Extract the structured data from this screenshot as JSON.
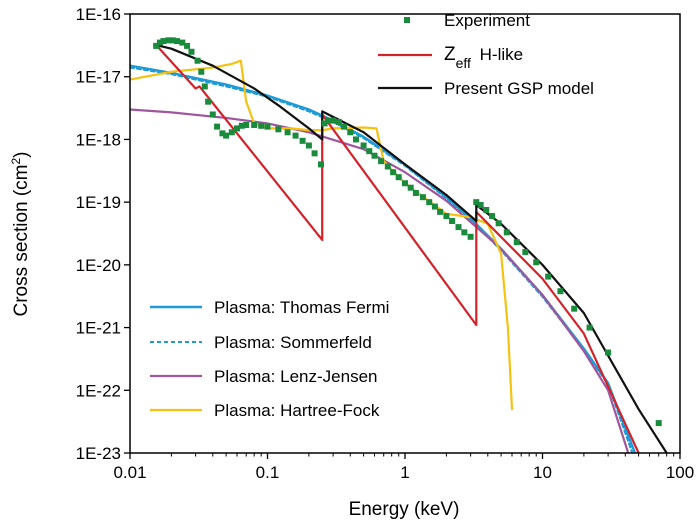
{
  "chart_data": {
    "type": "line",
    "xlabel": "Energy (keV)",
    "ylabel_main": "Cross section (cm",
    "ylabel_sup": "2",
    "ylabel_close": ")",
    "x_scale": "log",
    "y_scale": "log",
    "xlim": [
      0.01,
      100
    ],
    "ylim": [
      1e-23,
      1e-16
    ],
    "x_ticks": [
      {
        "value": 0.01,
        "label": "0.01"
      },
      {
        "value": 0.1,
        "label": "0.1"
      },
      {
        "value": 1,
        "label": "1"
      },
      {
        "value": 10,
        "label": "10"
      },
      {
        "value": 100,
        "label": "100"
      }
    ],
    "y_ticks": [
      {
        "value": 1e-23,
        "label": "1E-23"
      },
      {
        "value": 1e-22,
        "label": "1E-22"
      },
      {
        "value": 1e-21,
        "label": "1E-21"
      },
      {
        "value": 1e-20,
        "label": "1E-20"
      },
      {
        "value": 1e-19,
        "label": "1E-19"
      },
      {
        "value": 1e-18,
        "label": "1E-18"
      },
      {
        "value": 1e-17,
        "label": "1E-17"
      },
      {
        "value": 1e-16,
        "label": "1E-16"
      }
    ],
    "legend_top": {
      "experiment": "Experiment",
      "zeff_main": "Z",
      "zeff_sub": "eff",
      "zeff_rest": " H-like",
      "gsp": "Present GSP model"
    },
    "legend_bottom": [
      {
        "label": "Plasma: Thomas Fermi",
        "color": "#1f9ad6",
        "dash": "none"
      },
      {
        "label": "Plasma: Sommerfeld",
        "color": "#1f9ad6",
        "dash": "4,3"
      },
      {
        "label": "Plasma: Lenz-Jensen",
        "color": "#a0569c",
        "dash": "none"
      },
      {
        "label": "Plasma: Hartree-Fock",
        "color": "#f5c211",
        "dash": "none"
      }
    ],
    "series": [
      {
        "key": "thomas_fermi",
        "color": "#1f9ad6",
        "dash": "none",
        "width": 2.4,
        "points": [
          [
            0.01,
            1.5e-17
          ],
          [
            0.02,
            1.15e-17
          ],
          [
            0.05,
            7.5e-18
          ],
          [
            0.1,
            5e-18
          ],
          [
            0.2,
            3e-18
          ],
          [
            0.3,
            2e-18
          ],
          [
            0.5,
            1.1e-18
          ],
          [
            1,
            4e-19
          ],
          [
            2,
            1.2e-19
          ],
          [
            3,
            5.5e-20
          ],
          [
            5,
            1.8e-20
          ],
          [
            10,
            3.3e-21
          ],
          [
            20,
            4.6e-22
          ],
          [
            30,
            1.3e-22
          ],
          [
            47,
            1e-23
          ]
        ]
      },
      {
        "key": "sommerfeld",
        "color": "#1f9ad6",
        "dash": "4,3",
        "width": 2,
        "points": [
          [
            0.01,
            1.4e-17
          ],
          [
            0.02,
            1.1e-17
          ],
          [
            0.05,
            7e-18
          ],
          [
            0.1,
            4.8e-18
          ],
          [
            0.2,
            2.8e-18
          ],
          [
            0.3,
            1.9e-18
          ],
          [
            0.5,
            1.05e-18
          ],
          [
            1,
            3.8e-19
          ],
          [
            2,
            1.15e-19
          ],
          [
            3,
            5.3e-20
          ],
          [
            5,
            1.7e-20
          ],
          [
            10,
            3.1e-21
          ],
          [
            20,
            4.4e-22
          ],
          [
            30,
            1.25e-22
          ],
          [
            45,
            1e-23
          ]
        ]
      },
      {
        "key": "lenz_jensen",
        "color": "#a0569c",
        "dash": "none",
        "width": 2.2,
        "points": [
          [
            0.01,
            3e-18
          ],
          [
            0.02,
            2.7e-18
          ],
          [
            0.05,
            2.2e-18
          ],
          [
            0.1,
            1.8e-18
          ],
          [
            0.2,
            1.3e-18
          ],
          [
            0.5,
            7e-19
          ],
          [
            1,
            3e-19
          ],
          [
            2,
            1.05e-19
          ],
          [
            5,
            1.8e-20
          ],
          [
            10,
            3.3e-21
          ],
          [
            20,
            4.2e-22
          ],
          [
            30,
            1e-22
          ],
          [
            42,
            1e-23
          ]
        ]
      },
      {
        "key": "hartree_fock",
        "color": "#f5c211",
        "dash": "none",
        "width": 2.2,
        "points": [
          [
            0.01,
            9e-18
          ],
          [
            0.02,
            1.2e-17
          ],
          [
            0.04,
            1.4e-17
          ],
          [
            0.055,
            1.6e-17
          ],
          [
            0.064,
            1.8e-17
          ],
          [
            0.07,
            4e-18
          ],
          [
            0.08,
            1.8e-18
          ],
          [
            0.1,
            1.5e-18
          ],
          [
            0.15,
            1.5e-18
          ],
          [
            0.2,
            1.4e-18
          ],
          [
            0.25,
            1.4e-18
          ],
          [
            0.3,
            1.5e-18
          ],
          [
            0.5,
            1.55e-18
          ],
          [
            0.62,
            1.5e-18
          ],
          [
            0.7,
            4.5e-19
          ],
          [
            1,
            2e-19
          ],
          [
            2,
            6.5e-20
          ],
          [
            3,
            5.8e-20
          ],
          [
            4,
            4.5e-20
          ],
          [
            5,
            1.5e-20
          ],
          [
            5.6,
            1e-21
          ],
          [
            6,
            5e-23
          ]
        ]
      },
      {
        "key": "zeff_hlike",
        "color": "#d2232a",
        "dash": "none",
        "width": 2.2,
        "points": [
          [
            0.0155,
            3.2e-17
          ],
          [
            0.03,
            6.5e-18
          ],
          [
            0.032,
            7e-18
          ],
          [
            0.25,
            2.5e-20
          ],
          [
            0.25,
            2.5e-18
          ],
          [
            3.3,
            1.1e-21
          ],
          [
            3.3,
            7e-20
          ],
          [
            10,
            6e-21
          ],
          [
            20,
            8e-22
          ],
          [
            50,
            1e-23
          ]
        ]
      },
      {
        "key": "gsp_model",
        "color": "#111111",
        "dash": "none",
        "width": 2.2,
        "points": [
          [
            0.0155,
            3.2e-17
          ],
          [
            0.02,
            2.8e-17
          ],
          [
            0.04,
            1.5e-17
          ],
          [
            0.08,
            6.5e-18
          ],
          [
            0.12,
            3.5e-18
          ],
          [
            0.2,
            1.5e-18
          ],
          [
            0.25,
            1e-18
          ],
          [
            0.25,
            2.8e-18
          ],
          [
            0.5,
            1.3e-18
          ],
          [
            1,
            4e-19
          ],
          [
            2,
            1.3e-19
          ],
          [
            3.3,
            5e-20
          ],
          [
            3.3,
            9e-20
          ],
          [
            5,
            4.5e-20
          ],
          [
            10,
            1e-20
          ],
          [
            20,
            1.7e-21
          ],
          [
            50,
            5e-23
          ],
          [
            80,
            1e-23
          ]
        ]
      }
    ],
    "experiment": {
      "color": "#1a8a3c",
      "points": [
        [
          0.0155,
          3.1e-17
        ],
        [
          0.0165,
          3.5e-17
        ],
        [
          0.0175,
          3.7e-17
        ],
        [
          0.019,
          3.8e-17
        ],
        [
          0.0205,
          3.8e-17
        ],
        [
          0.022,
          3.7e-17
        ],
        [
          0.024,
          3.5e-17
        ],
        [
          0.026,
          3.1e-17
        ],
        [
          0.028,
          2.5e-17
        ],
        [
          0.031,
          1.8e-17
        ],
        [
          0.033,
          1.2e-17
        ],
        [
          0.035,
          7e-18
        ],
        [
          0.037,
          4e-18
        ],
        [
          0.04,
          2.5e-18
        ],
        [
          0.043,
          1.6e-18
        ],
        [
          0.047,
          1.25e-18
        ],
        [
          0.05,
          1.15e-18
        ],
        [
          0.055,
          1.3e-18
        ],
        [
          0.06,
          1.5e-18
        ],
        [
          0.065,
          1.65e-18
        ],
        [
          0.07,
          1.7e-18
        ],
        [
          0.08,
          1.7e-18
        ],
        [
          0.09,
          1.65e-18
        ],
        [
          0.1,
          1.6e-18
        ],
        [
          0.12,
          1.45e-18
        ],
        [
          0.14,
          1.3e-18
        ],
        [
          0.16,
          1.15e-18
        ],
        [
          0.18,
          9.5e-19
        ],
        [
          0.2,
          8e-19
        ],
        [
          0.22,
          6e-19
        ],
        [
          0.245,
          4e-19
        ],
        [
          0.26,
          1.8e-18
        ],
        [
          0.28,
          2e-18
        ],
        [
          0.3,
          2e-18
        ],
        [
          0.33,
          1.9e-18
        ],
        [
          0.36,
          1.6e-18
        ],
        [
          0.4,
          1.3e-18
        ],
        [
          0.44,
          1e-18
        ],
        [
          0.5,
          8e-19
        ],
        [
          0.55,
          6.5e-19
        ],
        [
          0.6,
          5.5e-19
        ],
        [
          0.67,
          4.5e-19
        ],
        [
          0.75,
          3.7e-19
        ],
        [
          0.82,
          3e-19
        ],
        [
          0.9,
          2.5e-19
        ],
        [
          1.0,
          2e-19
        ],
        [
          1.1,
          1.7e-19
        ],
        [
          1.2,
          1.4e-19
        ],
        [
          1.35,
          1.2e-19
        ],
        [
          1.5,
          1e-19
        ],
        [
          1.65,
          8.5e-20
        ],
        [
          1.8,
          7e-20
        ],
        [
          2.0,
          6e-20
        ],
        [
          2.2,
          5e-20
        ],
        [
          2.45,
          4e-20
        ],
        [
          2.7,
          3.3e-20
        ],
        [
          3.0,
          2.8e-20
        ],
        [
          3.3,
          1e-19
        ],
        [
          3.55,
          9e-20
        ],
        [
          3.9,
          7.5e-20
        ],
        [
          4.3,
          6e-20
        ],
        [
          4.8,
          4.6e-20
        ],
        [
          5.5,
          3.3e-20
        ],
        [
          6.5,
          2.3e-20
        ],
        [
          7.5,
          1.6e-20
        ],
        [
          9,
          1.1e-20
        ],
        [
          11,
          6.5e-21
        ],
        [
          13.5,
          3.8e-21
        ],
        [
          17,
          2e-21
        ],
        [
          22,
          1e-21
        ],
        [
          30,
          4e-22
        ],
        [
          70,
          3e-23
        ]
      ]
    }
  }
}
